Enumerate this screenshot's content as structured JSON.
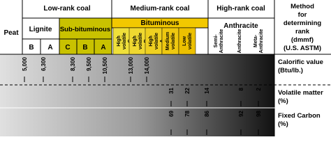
{
  "peat": "Peat",
  "ranks": [
    "Low-rank coal",
    "Medium-rank coal",
    "High-rank coal"
  ],
  "groups": [
    "Lignite",
    "Sub-bituminous",
    "Bituminous",
    "Anthracite"
  ],
  "subgroups": [
    "B",
    "A",
    "C",
    "B",
    "A",
    "High volatile C",
    "High volatile B",
    "High volatile A",
    "Medium volatile",
    "Low volatile",
    "Semi-Anthracite",
    "Anthracite",
    "Meta-Anthracite"
  ],
  "method": "Method for determining rank (dmmf) (U.S. ASTM)",
  "rows": [
    {
      "label": "Calorific value (Btu/lb.)",
      "ticks": [
        "5,000",
        "6,300",
        "8,300",
        "9,500",
        "10,500",
        "13,000",
        "14,000"
      ]
    },
    {
      "label": "Volatile matter (%)",
      "ticks": [
        "31",
        "22",
        "14",
        "8",
        "2"
      ]
    },
    {
      "label": "Fixed Carbon (%)",
      "ticks": [
        "69",
        "78",
        "86",
        "92",
        "98"
      ]
    }
  ]
}
